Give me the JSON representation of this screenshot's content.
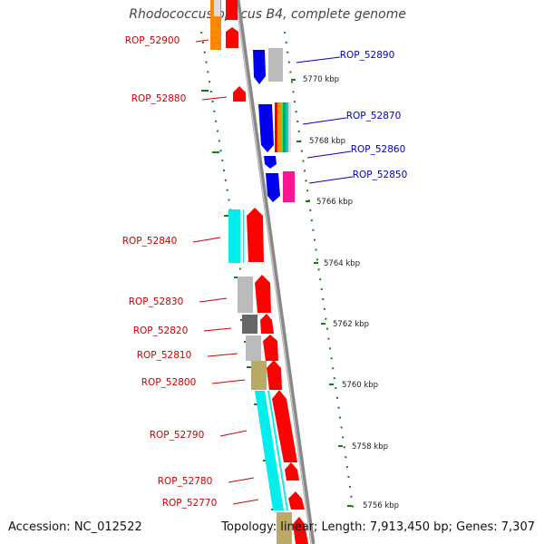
{
  "title": "Rhodococcus opacus B4, complete genome",
  "footer": {
    "accession": "Accession: NC_012522",
    "summary": "Topology: linear; Length: 7,913,450 bp; Genes: 7,307"
  },
  "colors": {
    "left_label": "#cc0000",
    "right_label": "#0000bb",
    "red": "#ff0000",
    "blue": "#0000ee",
    "cyan": "#00eeee",
    "gray": "#bbbbbb",
    "darkgray": "#666666",
    "olive": "#bbaa66",
    "orange": "#ff8800",
    "magenta": "#ff1493",
    "tick": "#1a7a1a",
    "axis": "#888888"
  },
  "scale_labels": [
    "5770 kbp",
    "5768 kbp",
    "5766 kbp",
    "5764 kbp",
    "5762 kbp",
    "5760 kbp",
    "5758 kbp",
    "5756 kbp"
  ],
  "left_genes": [
    "ROP_52900",
    "ROP_52880",
    "ROP_52840",
    "ROP_52830",
    "ROP_52820",
    "ROP_52810",
    "ROP_52800",
    "ROP_52790",
    "ROP_52780",
    "ROP_52770"
  ],
  "right_genes": [
    "ROP_52890",
    "ROP_52870",
    "ROP_52860",
    "ROP_52850"
  ]
}
